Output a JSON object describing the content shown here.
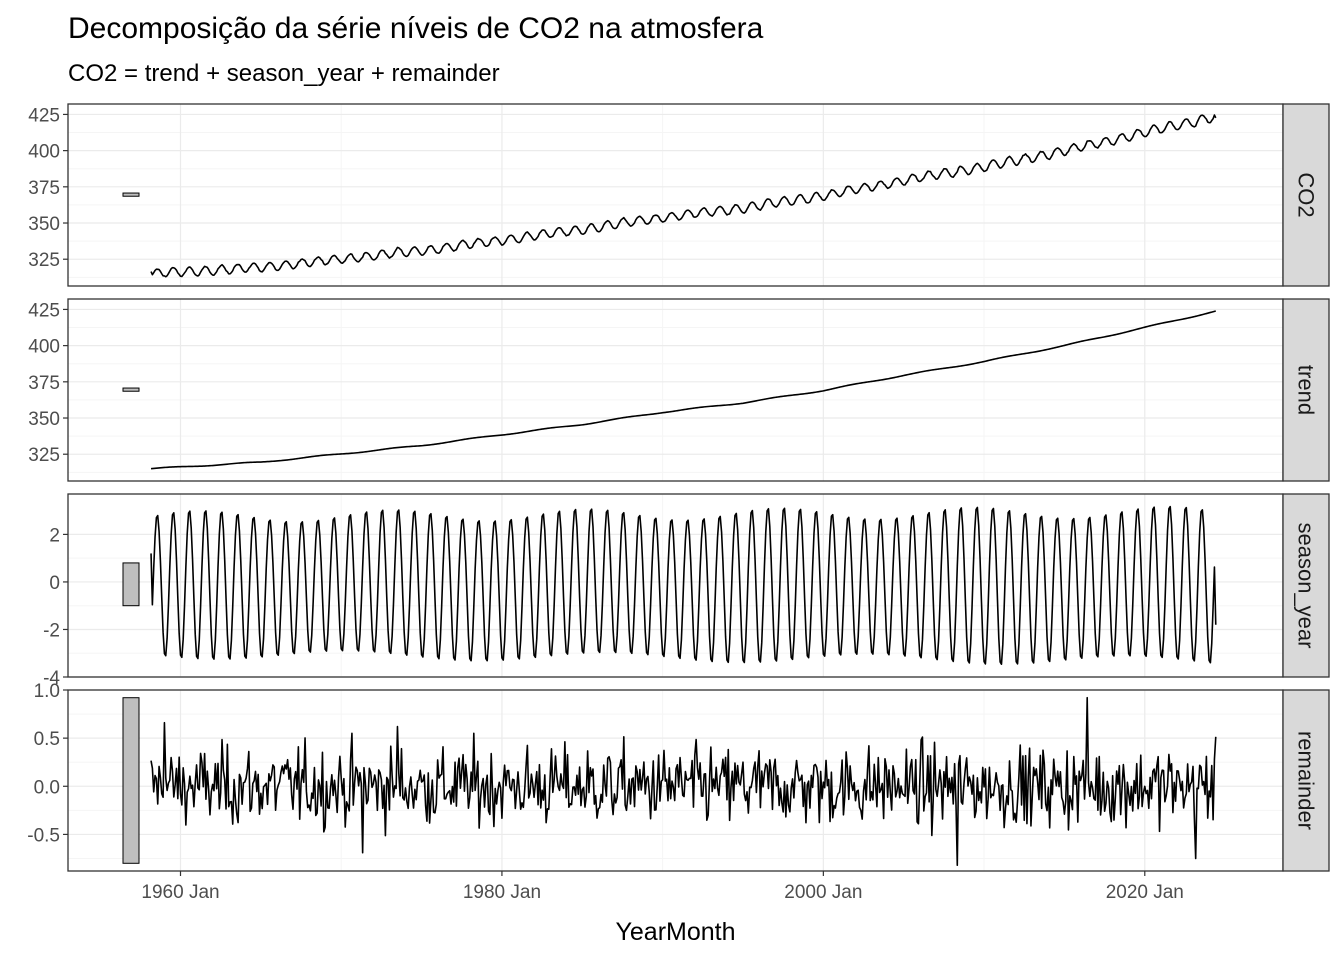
{
  "chart_data": {
    "type": "line",
    "title": "Decomposição da série níveis de CO2 na atmosfera",
    "subtitle": "CO2 = trend + season_year + remainder",
    "xlabel": "YearMonth",
    "x_ticks": [
      "1960 Jan",
      "1980 Jan",
      "2000 Jan",
      "2020 Jan"
    ],
    "x_tick_years": [
      1960,
      1980,
      2000,
      2020
    ],
    "x_range": [
      1953.0,
      2028.6
    ],
    "x_start": "1958 Mar",
    "x_end": "2024 Jun",
    "grid": true,
    "facets": [
      {
        "strip": "CO2",
        "ylim": [
          306.5,
          432.2
        ],
        "y_ticks": [
          325,
          350,
          375,
          400,
          425
        ],
        "y_tick_labels": [
          "325",
          "350",
          "375",
          "400",
          "425"
        ],
        "scale_bar": [
          368.5,
          370.7
        ],
        "start_value": 315.7,
        "end_value": 424.0
      },
      {
        "strip": "trend",
        "ylim": [
          306.5,
          432.2
        ],
        "y_ticks": [
          325,
          350,
          375,
          400,
          425
        ],
        "y_tick_labels": [
          "325",
          "350",
          "375",
          "400",
          "425"
        ],
        "scale_bar": [
          368.5,
          370.7
        ],
        "anchors": [
          [
            1958.2,
            315.0
          ],
          [
            1965,
            319.5
          ],
          [
            1970,
            325.2
          ],
          [
            1975,
            331.0
          ],
          [
            1980,
            338.5
          ],
          [
            1985,
            345.6
          ],
          [
            1990,
            354.0
          ],
          [
            1995,
            360.5
          ],
          [
            2000,
            369.0
          ],
          [
            2005,
            379.5
          ],
          [
            2010,
            389.0
          ],
          [
            2015,
            400.0
          ],
          [
            2020,
            412.5
          ],
          [
            2024.5,
            424.0
          ]
        ]
      },
      {
        "strip": "season_year",
        "ylim": [
          -4.0,
          3.7
        ],
        "y_ticks": [
          -4,
          -2,
          0,
          2
        ],
        "y_tick_labels": [
          "-4",
          "-2",
          "0",
          "2"
        ],
        "scale_bar": [
          -1.0,
          0.8
        ],
        "amplitude_start": [
          2.8,
          -3.1
        ],
        "amplitude_end": [
          3.0,
          -3.4
        ],
        "last_value": -1.8
      },
      {
        "strip": "remainder",
        "ylim": [
          -0.88,
          1.0
        ],
        "y_ticks": [
          -0.5,
          0.0,
          0.5,
          1.0
        ],
        "y_tick_labels": [
          "-0.5",
          "0.0",
          "0.5",
          "1.0"
        ],
        "scale_bar": [
          -0.8,
          0.92
        ],
        "range": [
          -0.82,
          0.92
        ],
        "spikes": [
          [
            1959.0,
            0.66
          ],
          [
            1971.3,
            -0.69
          ],
          [
            1973.5,
            0.62
          ],
          [
            2008.3,
            -0.82
          ],
          [
            2016.4,
            0.92
          ],
          [
            2023.2,
            -0.75
          ]
        ]
      }
    ]
  },
  "colors": {
    "strip_fill": "#d9d9d9",
    "panel_border": "#333333",
    "grid_major": "#ebebeb",
    "grid_minor": "#f5f5f5",
    "line": "#000000",
    "scale_bar_fill": "#bfbfbf",
    "axis_text": "#4d4d4d"
  }
}
